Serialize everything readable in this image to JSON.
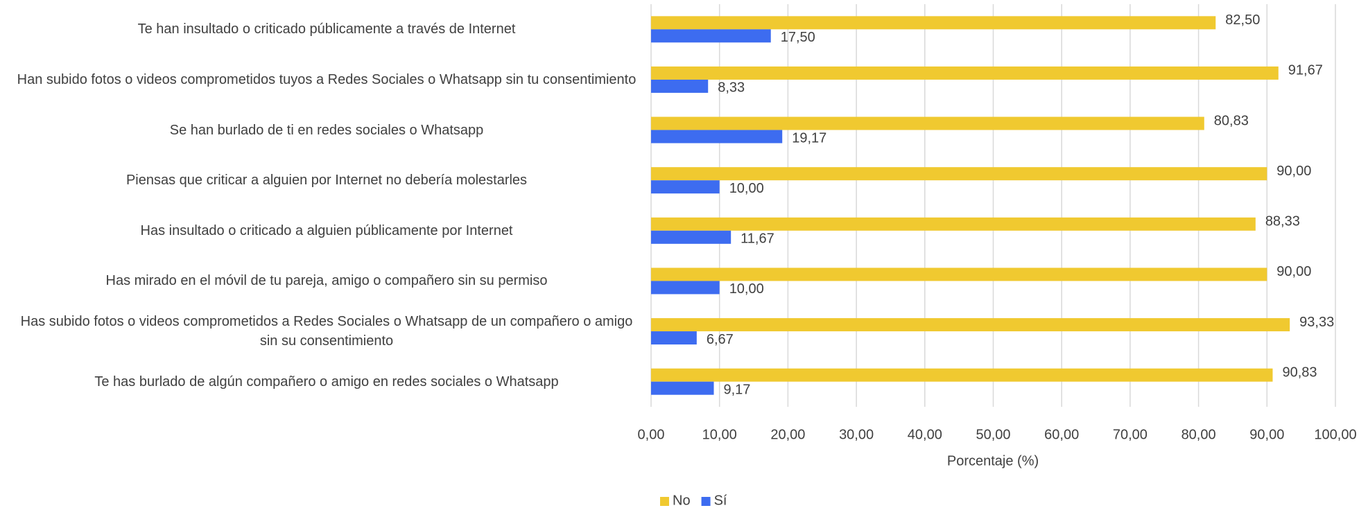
{
  "chart_data": {
    "type": "hbar",
    "categories": [
      "Te han insultado o criticado públicamente a través de Internet",
      "Han subido fotos o videos comprometidos tuyos a Redes Sociales o Whatsapp sin tu consentimiento",
      "Se han burlado de ti en redes sociales o Whatsapp",
      "Piensas que criticar a alguien por Internet no debería molestarles",
      "Has insultado o criticado a alguien públicamente por Internet",
      "Has mirado en el móvil de tu pareja, amigo o compañero sin su permiso",
      "Has subido fotos o videos comprometidos a Redes Sociales o Whatsapp de un compañero o amigo sin su consentimiento",
      "Te has burlado de algún compañero o amigo en redes sociales o Whatsapp"
    ],
    "series": [
      {
        "name": "No",
        "color": "#f0c930",
        "values": [
          82.5,
          91.67,
          80.83,
          90.0,
          88.33,
          90.0,
          93.33,
          90.83
        ],
        "value_labels": [
          "82,50",
          "91,67",
          "80,83",
          "90,00",
          "88,33",
          "90,00",
          "93,33",
          "90,83"
        ]
      },
      {
        "name": "Sí",
        "color": "#3d6cf0",
        "values": [
          17.5,
          8.33,
          19.17,
          10.0,
          11.67,
          10.0,
          6.67,
          9.17
        ],
        "value_labels": [
          "17,50",
          "8,33",
          "19,17",
          "10,00",
          "11,67",
          "10,00",
          "6,67",
          "9,17"
        ]
      }
    ],
    "xlabel": "Porcentaje (%)",
    "xlim": [
      0,
      100
    ],
    "xticks": [
      {
        "value": 0,
        "label": "0,00"
      },
      {
        "value": 10,
        "label": "10,00"
      },
      {
        "value": 20,
        "label": "20,00"
      },
      {
        "value": 30,
        "label": "30,00"
      },
      {
        "value": 40,
        "label": "40,00"
      },
      {
        "value": 50,
        "label": "50,00"
      },
      {
        "value": 60,
        "label": "60,00"
      },
      {
        "value": 70,
        "label": "70,00"
      },
      {
        "value": 80,
        "label": "80,00"
      },
      {
        "value": 90,
        "label": "90,00"
      },
      {
        "value": 100,
        "label": "100,00"
      }
    ],
    "grid": true,
    "legend": "bottom"
  }
}
